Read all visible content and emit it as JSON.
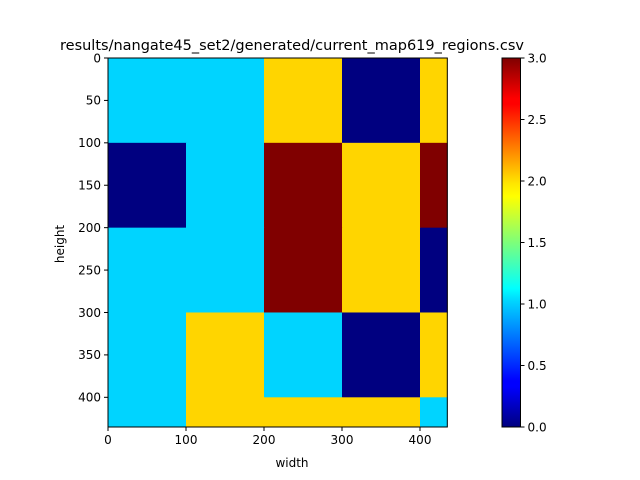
{
  "chart_data": {
    "type": "heatmap",
    "title": "results/nangate45_set2/generated/current_map619_regions.csv",
    "xlabel": "width",
    "ylabel": "height",
    "colormap": "jet",
    "xlim": [
      0,
      435
    ],
    "ylim": [
      435,
      0
    ],
    "xticks": [
      "0",
      "100",
      "200",
      "300",
      "400"
    ],
    "yticks": [
      "0",
      "50",
      "100",
      "150",
      "200",
      "250",
      "300",
      "350",
      "400"
    ],
    "colorbar": {
      "range": [
        0.0,
        3.0
      ],
      "ticks": [
        "0.0",
        "0.5",
        "1.0",
        "1.5",
        "2.0",
        "2.5",
        "3.0"
      ]
    },
    "cell_width": 100,
    "cell_height": 100,
    "values": [
      [
        1,
        1,
        2,
        0,
        2
      ],
      [
        0,
        1,
        3,
        2,
        3
      ],
      [
        1,
        1,
        3,
        2,
        0
      ],
      [
        1,
        2,
        1,
        0,
        2
      ],
      [
        1,
        2,
        2,
        2,
        1
      ]
    ]
  }
}
